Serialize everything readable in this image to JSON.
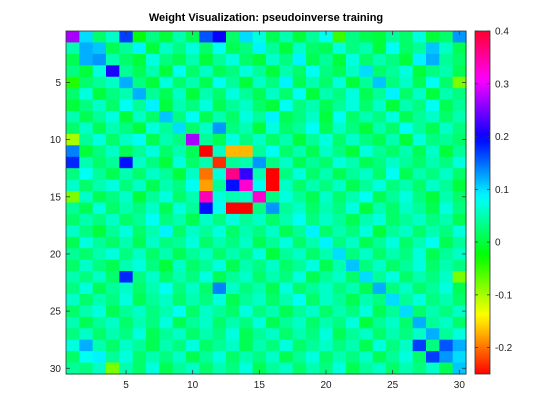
{
  "chart_data": {
    "type": "heatmap",
    "title": "Weight Visualization: pseudoinverse training",
    "xlabel": "",
    "ylabel": "",
    "rows": 30,
    "cols": 30,
    "x_ticks": [
      5,
      10,
      15,
      20,
      25,
      30
    ],
    "y_ticks": [
      5,
      10,
      15,
      20,
      25,
      30
    ],
    "colorbar": {
      "min": -0.25,
      "max": 0.4,
      "ticks": [
        0.4,
        0.3,
        0.2,
        0.1,
        0,
        -0.1,
        -0.2
      ],
      "tick_labels": [
        "0.4",
        "0.3",
        "0.2",
        "0.1",
        "0",
        "-0.1",
        "-0.2"
      ],
      "colormap": "hsv",
      "placement": "right"
    },
    "values": [
      [
        0.27,
        0.1,
        0.02,
        0.06,
        0.17,
        -0.02,
        0.03,
        0.0,
        0.05,
        0.01,
        0.16,
        0.2,
        0.02,
        0.1,
        0.07,
        0.01,
        0.05,
        0.0,
        0.04,
        0.08,
        -0.05,
        0.03,
        0.01,
        0.0,
        0.04,
        0.02,
        0.07,
        0.0,
        0.02,
        0.13
      ],
      [
        0.05,
        0.12,
        0.11,
        0.01,
        0.04,
        0.09,
        0.0,
        0.06,
        0.03,
        0.07,
        0.02,
        0.08,
        0.01,
        0.03,
        0.09,
        0.04,
        0.0,
        0.06,
        0.02,
        0.01,
        0.07,
        0.03,
        0.05,
        0.0,
        0.08,
        0.02,
        0.04,
        0.11,
        0.06,
        0.01
      ],
      [
        0.01,
        0.12,
        0.13,
        0.05,
        0.02,
        0.0,
        0.07,
        0.03,
        0.01,
        0.05,
        0.0,
        0.04,
        0.07,
        0.02,
        0.0,
        0.06,
        0.03,
        0.09,
        0.01,
        0.04,
        0.0,
        0.07,
        0.02,
        0.05,
        0.03,
        0.0,
        0.09,
        0.12,
        0.04,
        0.02
      ],
      [
        0.03,
        0.0,
        0.07,
        0.21,
        0.04,
        0.01,
        0.05,
        0.0,
        0.08,
        0.02,
        0.06,
        0.01,
        0.03,
        0.07,
        0.04,
        0.0,
        0.05,
        0.02,
        0.08,
        0.03,
        0.01,
        0.06,
        0.1,
        0.02,
        0.04,
        0.07,
        0.0,
        0.03,
        0.05,
        0.01
      ],
      [
        -0.04,
        0.02,
        0.04,
        0.06,
        0.12,
        0.03,
        0.0,
        0.07,
        0.02,
        0.05,
        0.01,
        0.08,
        0.04,
        0.0,
        0.06,
        0.03,
        0.09,
        0.01,
        0.05,
        0.02,
        0.07,
        0.0,
        0.04,
        0.11,
        0.03,
        0.06,
        0.01,
        0.08,
        0.02,
        -0.08
      ],
      [
        0.02,
        0.07,
        0.0,
        0.03,
        0.05,
        0.12,
        0.04,
        0.01,
        0.06,
        0.0,
        0.05,
        0.02,
        0.07,
        0.04,
        0.01,
        0.06,
        0.02,
        0.08,
        0.0,
        0.05,
        0.03,
        0.07,
        0.01,
        0.04,
        0.09,
        0.02,
        0.06,
        0.0,
        0.05,
        0.03
      ],
      [
        0.0,
        0.03,
        0.06,
        0.02,
        0.08,
        0.04,
        0.09,
        0.0,
        0.05,
        0.03,
        0.07,
        0.01,
        0.04,
        0.06,
        0.02,
        0.0,
        0.08,
        0.03,
        0.05,
        0.01,
        0.04,
        0.07,
        0.02,
        0.06,
        0.0,
        0.05,
        0.03,
        0.08,
        0.01,
        0.04
      ],
      [
        0.05,
        0.01,
        0.04,
        0.07,
        0.0,
        0.06,
        0.02,
        0.11,
        0.03,
        0.08,
        0.01,
        0.05,
        0.02,
        0.07,
        0.04,
        0.09,
        0.01,
        0.03,
        0.06,
        0.0,
        0.08,
        0.02,
        0.05,
        0.03,
        0.07,
        0.01,
        0.04,
        0.06,
        0.02,
        0.05
      ],
      [
        0.02,
        0.06,
        0.01,
        0.05,
        0.03,
        0.0,
        0.07,
        0.04,
        0.1,
        0.02,
        0.06,
        0.13,
        0.03,
        0.05,
        0.0,
        0.07,
        0.02,
        0.04,
        0.08,
        0.01,
        0.06,
        0.03,
        0.0,
        0.05,
        0.02,
        0.08,
        0.04,
        0.01,
        0.06,
        0.03
      ],
      [
        -0.1,
        0.04,
        0.07,
        0.02,
        0.06,
        0.08,
        0.01,
        0.05,
        0.03,
        0.27,
        0.04,
        0.01,
        0.07,
        0.03,
        0.06,
        0.02,
        0.05,
        0.0,
        0.04,
        0.07,
        0.02,
        0.06,
        0.03,
        0.01,
        0.05,
        0.0,
        0.07,
        0.03,
        0.04,
        0.02
      ],
      [
        0.14,
        0.0,
        0.03,
        0.06,
        0.01,
        0.04,
        0.07,
        0.02,
        0.05,
        0.01,
        -0.26,
        0.06,
        -0.17,
        -0.17,
        0.04,
        0.08,
        0.02,
        0.05,
        0.01,
        0.06,
        0.03,
        0.0,
        0.07,
        0.04,
        0.02,
        0.05,
        0.01,
        0.06,
        0.0,
        0.04
      ],
      [
        0.18,
        0.05,
        0.02,
        0.04,
        0.19,
        0.06,
        0.03,
        0.0,
        0.07,
        0.02,
        0.05,
        -0.23,
        0.04,
        0.05,
        0.13,
        0.03,
        0.06,
        0.01,
        0.04,
        0.02,
        0.07,
        0.05,
        0.01,
        0.03,
        0.06,
        0.04,
        0.02,
        0.05,
        0.03,
        0.07
      ],
      [
        0.03,
        0.08,
        0.04,
        0.01,
        0.05,
        0.02,
        0.06,
        0.04,
        0.0,
        0.06,
        -0.2,
        0.07,
        0.36,
        0.22,
        0.05,
        -0.25,
        0.03,
        0.07,
        0.02,
        0.05,
        0.01,
        0.04,
        0.06,
        0.02,
        0.08,
        0.01,
        0.05,
        0.03,
        0.06,
        0.02
      ],
      [
        0.06,
        0.02,
        0.05,
        0.07,
        0.03,
        0.06,
        0.01,
        0.05,
        0.03,
        0.08,
        -0.18,
        0.04,
        0.19,
        0.33,
        0.08,
        -0.25,
        0.06,
        0.02,
        0.05,
        0.03,
        0.06,
        0.01,
        0.04,
        0.07,
        0.03,
        0.05,
        0.02,
        0.06,
        0.04,
        0.0
      ],
      [
        -0.08,
        0.06,
        0.01,
        0.03,
        0.06,
        0.0,
        0.04,
        0.07,
        0.02,
        0.05,
        0.34,
        0.07,
        0.05,
        0.06,
        0.33,
        0.03,
        0.07,
        0.04,
        0.01,
        0.06,
        0.02,
        0.05,
        0.08,
        0.01,
        0.04,
        0.07,
        0.03,
        0.0,
        0.05,
        0.02
      ],
      [
        0.04,
        0.01,
        0.07,
        0.02,
        0.05,
        0.03,
        0.06,
        0.01,
        0.07,
        0.04,
        0.19,
        0.08,
        -0.25,
        -0.25,
        0.03,
        0.13,
        0.04,
        0.06,
        0.02,
        0.05,
        0.03,
        0.07,
        0.0,
        0.05,
        0.02,
        0.06,
        0.04,
        0.01,
        0.07,
        0.03
      ],
      [
        0.02,
        0.05,
        0.03,
        0.06,
        0.02,
        0.04,
        0.08,
        0.03,
        0.05,
        0.01,
        0.06,
        0.03,
        0.07,
        0.04,
        0.06,
        0.02,
        0.05,
        0.08,
        0.03,
        0.06,
        0.04,
        0.01,
        0.05,
        0.07,
        0.02,
        0.04,
        0.06,
        0.03,
        0.05,
        0.01
      ],
      [
        0.06,
        0.03,
        0.0,
        0.04,
        0.07,
        0.02,
        0.05,
        0.09,
        0.02,
        0.06,
        0.04,
        0.07,
        0.02,
        0.05,
        0.03,
        0.06,
        0.01,
        0.04,
        0.09,
        0.02,
        0.05,
        0.03,
        0.07,
        0.0,
        0.04,
        0.06,
        0.02,
        0.05,
        0.03,
        0.07
      ],
      [
        0.01,
        0.07,
        0.04,
        0.02,
        0.05,
        0.01,
        0.06,
        0.03,
        0.04,
        0.07,
        0.02,
        0.05,
        0.03,
        0.06,
        0.01,
        0.04,
        0.07,
        0.02,
        0.05,
        0.09,
        0.03,
        0.06,
        0.01,
        0.04,
        0.07,
        0.02,
        0.05,
        0.08,
        0.01,
        0.04
      ],
      [
        0.04,
        0.02,
        0.05,
        0.07,
        0.03,
        0.06,
        0.02,
        0.05,
        0.01,
        0.04,
        0.06,
        0.02,
        0.05,
        0.03,
        0.07,
        0.0,
        0.04,
        0.06,
        0.02,
        0.05,
        0.1,
        0.03,
        0.06,
        0.02,
        0.05,
        0.03,
        0.07,
        0.01,
        0.04,
        0.06
      ],
      [
        0.02,
        0.06,
        0.03,
        0.01,
        0.05,
        0.07,
        0.03,
        0.0,
        0.06,
        0.02,
        0.04,
        0.07,
        0.01,
        0.05,
        0.03,
        0.06,
        0.02,
        0.04,
        0.07,
        0.01,
        0.05,
        0.11,
        0.03,
        0.06,
        0.02,
        0.04,
        0.07,
        0.02,
        0.05,
        0.03
      ],
      [
        0.05,
        0.03,
        0.06,
        0.02,
        0.18,
        0.03,
        0.06,
        0.02,
        0.05,
        0.03,
        0.07,
        0.01,
        0.04,
        0.06,
        0.02,
        0.05,
        0.03,
        0.07,
        0.01,
        0.04,
        0.06,
        0.02,
        0.1,
        0.04,
        0.07,
        0.02,
        0.05,
        0.03,
        0.06,
        -0.08
      ],
      [
        0.03,
        0.07,
        0.01,
        0.04,
        0.06,
        0.02,
        0.05,
        0.08,
        0.03,
        0.06,
        0.02,
        0.14,
        0.06,
        0.03,
        0.05,
        0.01,
        0.07,
        0.02,
        0.04,
        0.06,
        0.03,
        0.05,
        0.01,
        0.12,
        0.03,
        0.06,
        0.02,
        0.04,
        0.07,
        0.01
      ],
      [
        0.06,
        0.02,
        0.05,
        0.03,
        0.07,
        0.01,
        0.04,
        0.06,
        0.02,
        0.05,
        0.03,
        0.07,
        0.01,
        0.04,
        0.06,
        0.02,
        0.05,
        0.08,
        0.02,
        0.06,
        0.04,
        0.01,
        0.05,
        0.03,
        0.1,
        0.04,
        0.07,
        0.03,
        0.05,
        0.02
      ],
      [
        0.02,
        0.05,
        0.07,
        0.01,
        0.04,
        0.06,
        0.03,
        0.05,
        0.08,
        0.02,
        0.06,
        0.04,
        0.02,
        0.07,
        0.03,
        0.05,
        0.01,
        0.04,
        0.06,
        0.02,
        0.05,
        0.03,
        0.07,
        0.01,
        0.04,
        0.1,
        0.02,
        0.05,
        0.03,
        0.06
      ],
      [
        0.05,
        0.01,
        0.04,
        0.06,
        0.02,
        0.05,
        0.03,
        0.07,
        0.01,
        0.04,
        0.06,
        0.02,
        0.05,
        0.03,
        0.07,
        0.01,
        0.04,
        0.06,
        0.02,
        0.05,
        0.03,
        0.07,
        0.0,
        0.04,
        0.06,
        0.02,
        0.12,
        0.04,
        0.06,
        0.02
      ],
      [
        0.03,
        0.06,
        0.02,
        0.05,
        0.03,
        0.07,
        0.01,
        0.04,
        0.06,
        0.02,
        0.05,
        0.03,
        0.07,
        0.01,
        0.04,
        0.06,
        0.02,
        0.05,
        0.03,
        0.07,
        0.01,
        0.04,
        0.06,
        0.02,
        0.05,
        0.03,
        0.06,
        0.12,
        0.04,
        0.07
      ],
      [
        0.07,
        0.12,
        0.05,
        0.02,
        0.06,
        0.04,
        0.01,
        0.05,
        0.03,
        0.07,
        0.02,
        0.04,
        0.06,
        0.01,
        0.05,
        0.03,
        0.07,
        0.02,
        0.04,
        0.06,
        0.03,
        0.05,
        0.01,
        0.07,
        0.03,
        0.06,
        0.17,
        0.03,
        0.16,
        0.12
      ],
      [
        0.02,
        0.08,
        0.09,
        0.04,
        0.07,
        0.02,
        0.05,
        0.03,
        0.06,
        0.01,
        0.04,
        0.07,
        0.02,
        0.05,
        0.03,
        0.06,
        0.01,
        0.04,
        0.07,
        0.02,
        0.05,
        0.03,
        0.06,
        0.01,
        0.04,
        0.07,
        0.02,
        0.17,
        0.13,
        0.1
      ],
      [
        0.04,
        0.03,
        0.06,
        -0.08,
        0.05,
        0.02,
        0.07,
        0.01,
        0.04,
        0.06,
        0.02,
        0.05,
        0.03,
        0.07,
        0.01,
        0.04,
        0.06,
        0.02,
        0.05,
        0.03,
        0.07,
        0.01,
        0.04,
        0.06,
        0.02,
        0.05,
        0.03,
        0.06,
        0.01,
        0.11
      ]
    ]
  }
}
